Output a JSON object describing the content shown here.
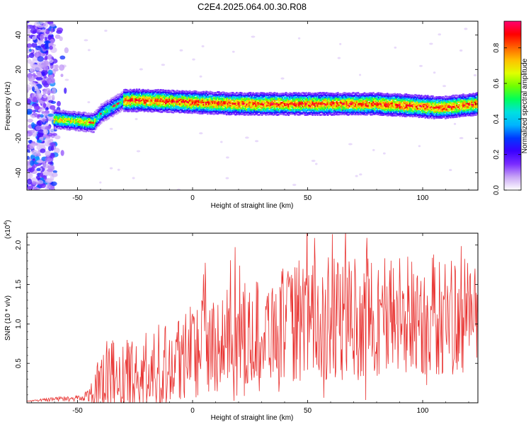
{
  "chart_data": [
    {
      "type": "heatmap",
      "title": "C2E4.2025.064.00.30.R08",
      "xlabel": "Height of straight line (km)",
      "ylabel": "Frequency (Hz)",
      "xlim": [
        -72,
        124
      ],
      "ylim": [
        -50,
        48
      ],
      "x_ticks": [
        -50,
        0,
        50,
        100
      ],
      "y_ticks": [
        -40,
        -20,
        0,
        20,
        40
      ],
      "colorbar": {
        "label": "Normalized spectral amplitude",
        "range": [
          0,
          0.95
        ],
        "ticks": [
          "0.0",
          "0.2",
          "0.4",
          "0.6",
          "0.8"
        ],
        "colors": [
          "#ffffff",
          "#c9a6f5",
          "#7a2cff",
          "#3a00ff",
          "#0038ff",
          "#00b4ff",
          "#00e0e0",
          "#00ff5a",
          "#70ff00",
          "#e0ff00",
          "#ffc000",
          "#ff6000",
          "#ff0000",
          "#ff0070"
        ]
      },
      "ridge": {
        "description_points": [
          {
            "x": -58,
            "y": -9
          },
          {
            "x": -50,
            "y": -10
          },
          {
            "x": -43,
            "y": -11
          },
          {
            "x": -40,
            "y": -6
          },
          {
            "x": -35,
            "y": -2
          },
          {
            "x": -30,
            "y": 2
          },
          {
            "x": -20,
            "y": 2
          },
          {
            "x": 0,
            "y": 1
          },
          {
            "x": 20,
            "y": 0
          },
          {
            "x": 50,
            "y": 0
          },
          {
            "x": 80,
            "y": 0
          },
          {
            "x": 95,
            "y": -1
          },
          {
            "x": 105,
            "y": -2
          },
          {
            "x": 110,
            "y": -2
          },
          {
            "x": 124,
            "y": 0
          }
        ],
        "noise_region_x": [
          -72,
          -60
        ]
      }
    },
    {
      "type": "line",
      "xlabel": "Height of straight line (km)",
      "ylabel": "SNR (10 * v/v)",
      "y_multiplier": "(x10",
      "y_multiplier_exp": "4",
      "y_multiplier_close": ")",
      "xlim": [
        -72,
        124
      ],
      "ylim": [
        0,
        2.15
      ],
      "x_ticks": [
        -50,
        0,
        50,
        100
      ],
      "y_ticks": [
        0.5,
        1.0,
        1.5,
        2.0
      ],
      "line_color": "#e8302e",
      "envelope": [
        {
          "x": -72,
          "mean": 0.02,
          "spread": 0.0
        },
        {
          "x": -60,
          "mean": 0.05,
          "spread": 0.02
        },
        {
          "x": -52,
          "mean": 0.05,
          "spread": 0.02
        },
        {
          "x": -45,
          "mean": 0.1,
          "spread": 0.05
        },
        {
          "x": -40,
          "mean": 0.3,
          "spread": 0.3
        },
        {
          "x": -35,
          "mean": 0.35,
          "spread": 0.3
        },
        {
          "x": -25,
          "mean": 0.3,
          "spread": 0.3
        },
        {
          "x": -18,
          "mean": 0.3,
          "spread": 0.35
        },
        {
          "x": -10,
          "mean": 0.55,
          "spread": 0.35
        },
        {
          "x": 0,
          "mean": 0.7,
          "spread": 0.4
        },
        {
          "x": 20,
          "mean": 0.85,
          "spread": 0.4
        },
        {
          "x": 40,
          "mean": 1.0,
          "spread": 0.45
        },
        {
          "x": 60,
          "mean": 1.05,
          "spread": 0.5
        },
        {
          "x": 80,
          "mean": 1.1,
          "spread": 0.5
        },
        {
          "x": 100,
          "mean": 1.1,
          "spread": 0.5
        },
        {
          "x": 124,
          "mean": 1.1,
          "spread": 0.45
        }
      ]
    }
  ]
}
